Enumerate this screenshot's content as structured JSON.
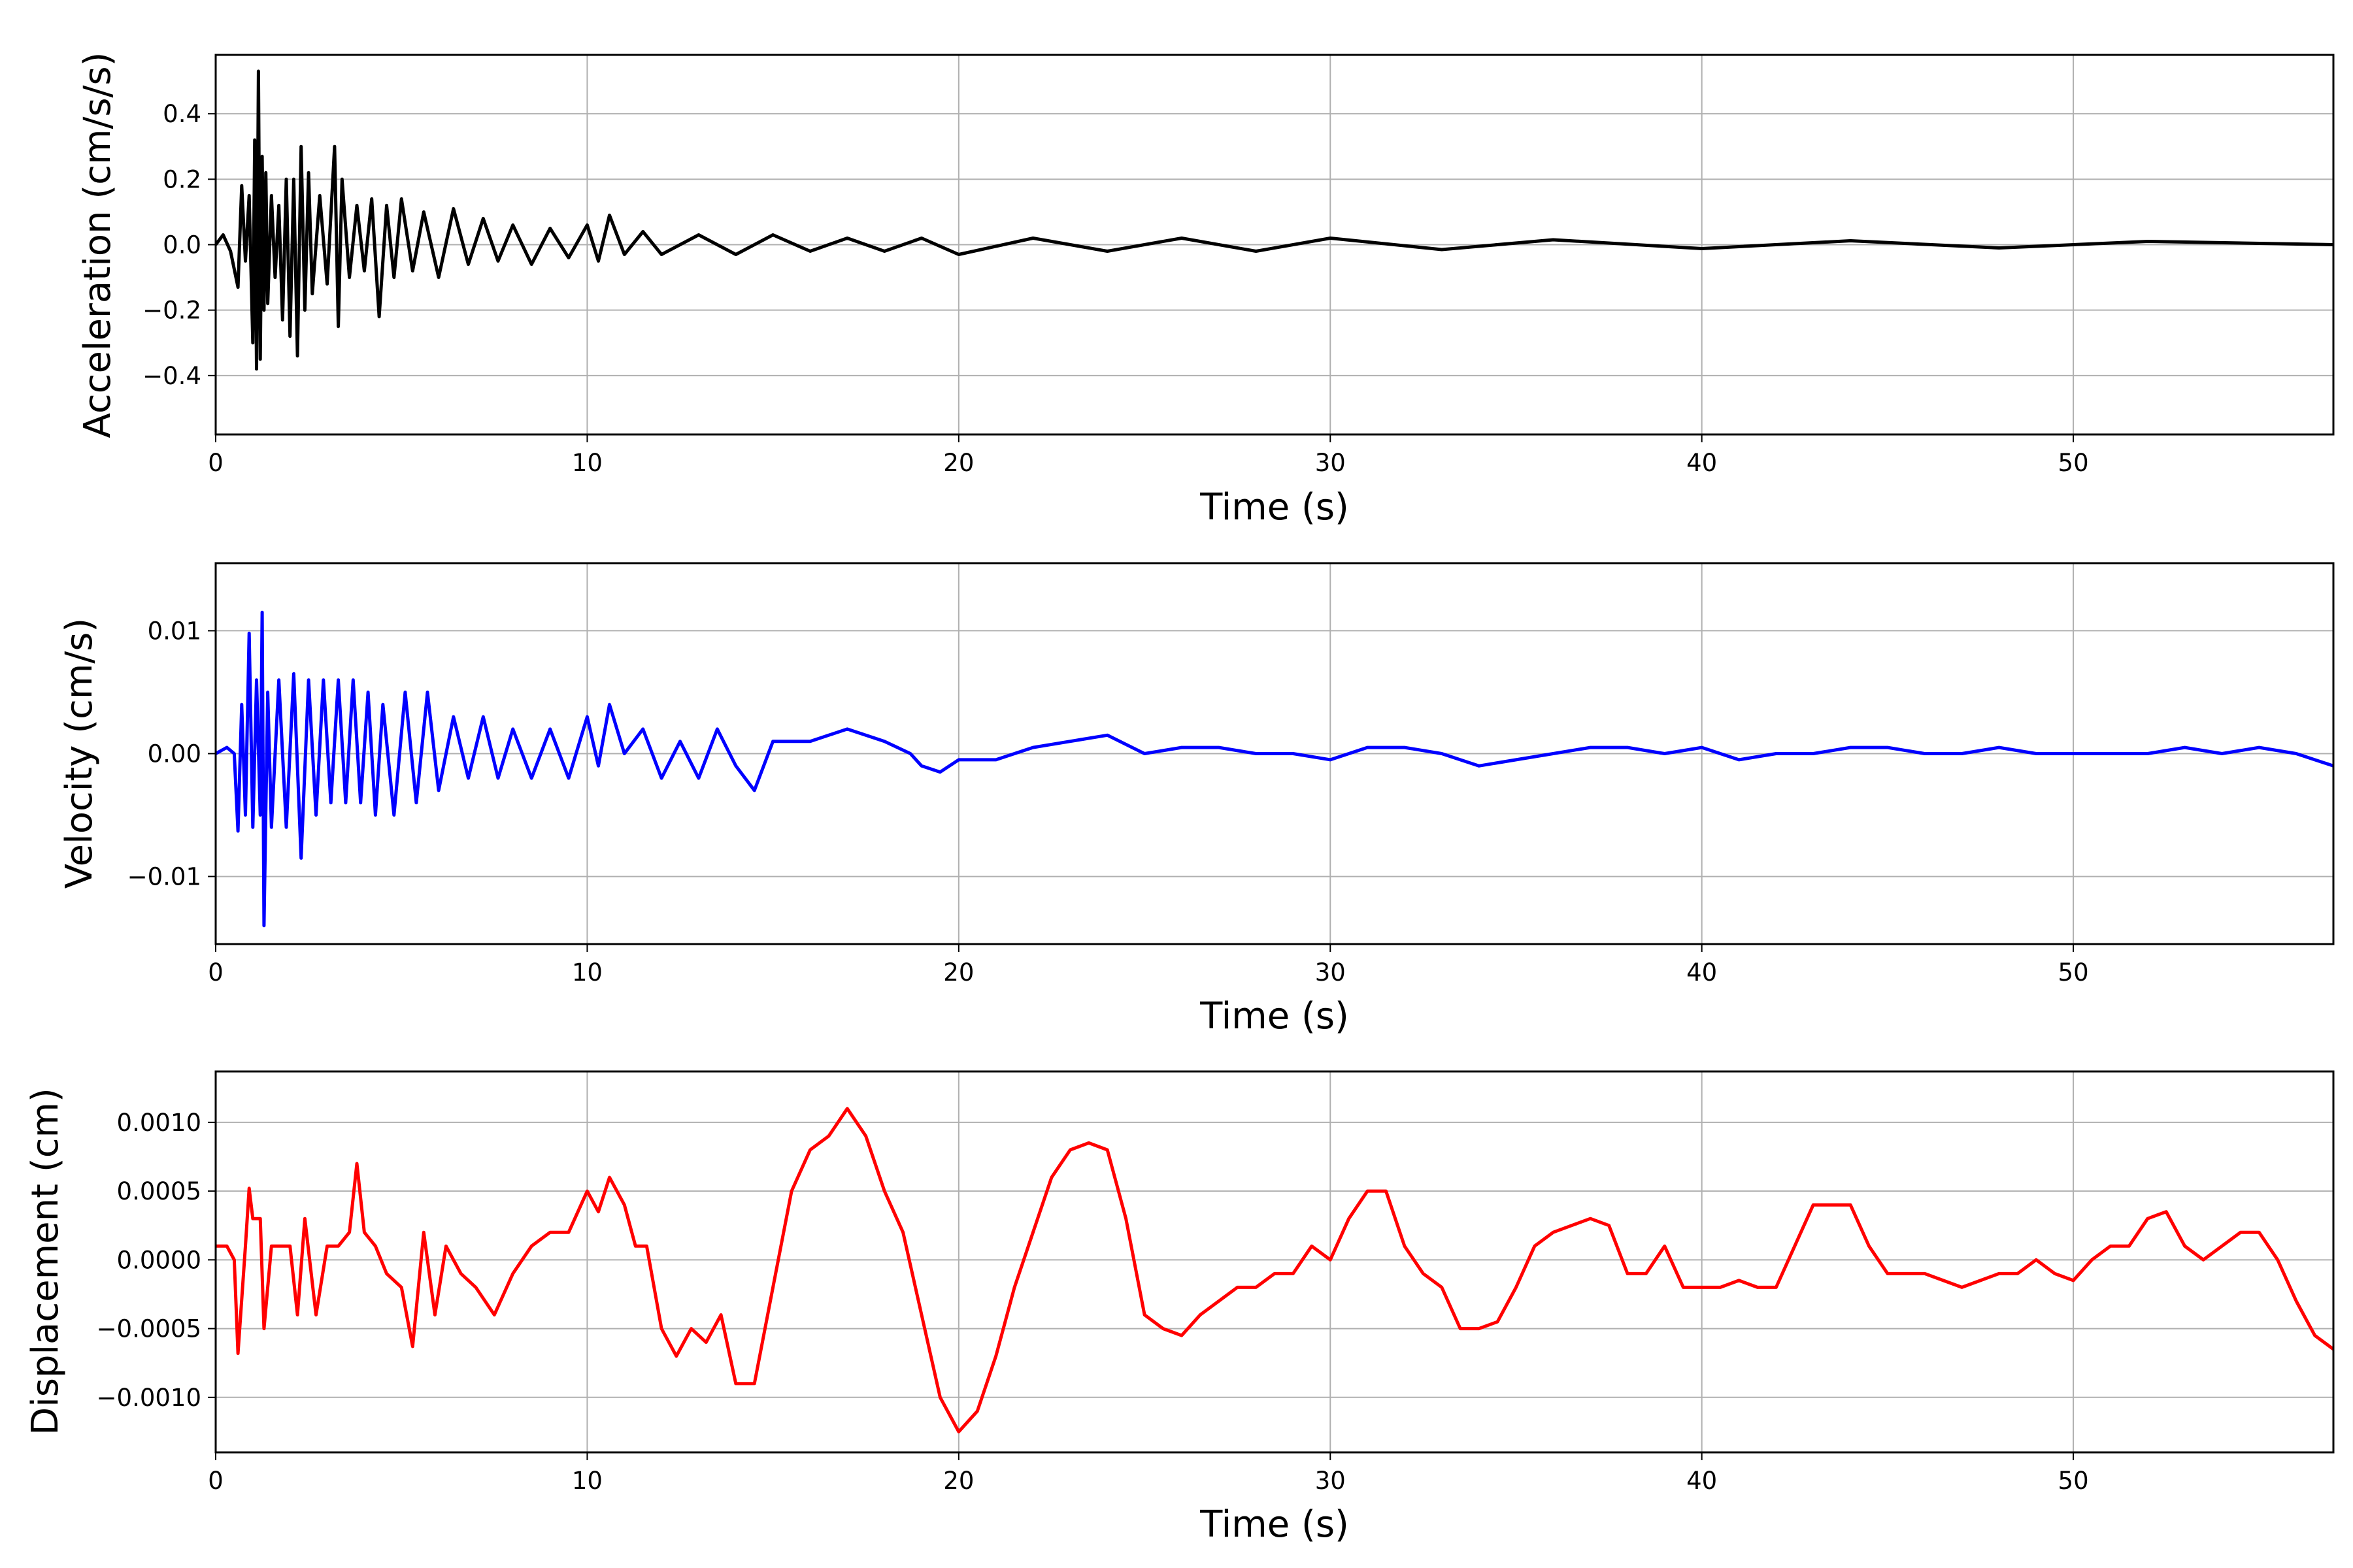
{
  "chart_data": [
    {
      "type": "line",
      "title": "",
      "xlabel": "Time (s)",
      "ylabel": "Acceleration (cm/s/s)",
      "xlim": [
        0,
        57
      ],
      "ylim": [
        -0.58,
        0.58
      ],
      "xticks": [
        0,
        10,
        20,
        30,
        40,
        50
      ],
      "xtick_labels": [
        "0",
        "10",
        "20",
        "30",
        "40",
        "50"
      ],
      "yticks": [
        0.4,
        0.2,
        0.0,
        -0.2,
        -0.4
      ],
      "ytick_labels": [
        "0.4",
        "0.2",
        "0.0",
        "−0.2",
        "−0.4"
      ],
      "grid": true,
      "legend": "none",
      "series": [
        {
          "color": "#000000",
          "x": [
            0,
            0.2,
            0.4,
            0.6,
            0.7,
            0.8,
            0.9,
            1.0,
            1.05,
            1.1,
            1.15,
            1.2,
            1.25,
            1.3,
            1.35,
            1.4,
            1.5,
            1.6,
            1.7,
            1.8,
            1.9,
            2.0,
            2.1,
            2.2,
            2.3,
            2.4,
            2.5,
            2.6,
            2.8,
            3.0,
            3.2,
            3.3,
            3.4,
            3.6,
            3.8,
            4.0,
            4.2,
            4.4,
            4.6,
            4.8,
            5.0,
            5.3,
            5.6,
            6.0,
            6.4,
            6.8,
            7.2,
            7.6,
            8.0,
            8.5,
            9.0,
            9.5,
            10.0,
            10.3,
            10.6,
            11.0,
            11.5,
            12.0,
            13.0,
            14.0,
            15.0,
            16.0,
            17.0,
            18.0,
            19.0,
            20.0,
            22.0,
            24.0,
            26.0,
            28.0,
            30.0,
            33.0,
            36.0,
            40.0,
            44.0,
            48.0,
            52.0,
            57.0
          ],
          "y": [
            0.0,
            0.03,
            -0.02,
            -0.13,
            0.18,
            -0.05,
            0.15,
            -0.3,
            0.32,
            -0.38,
            0.53,
            -0.35,
            0.27,
            -0.2,
            0.22,
            -0.18,
            0.15,
            -0.1,
            0.12,
            -0.23,
            0.2,
            -0.28,
            0.2,
            -0.34,
            0.3,
            -0.2,
            0.22,
            -0.15,
            0.15,
            -0.12,
            0.3,
            -0.25,
            0.2,
            -0.1,
            0.12,
            -0.08,
            0.14,
            -0.22,
            0.12,
            -0.1,
            0.14,
            -0.08,
            0.1,
            -0.1,
            0.11,
            -0.06,
            0.08,
            -0.05,
            0.06,
            -0.06,
            0.05,
            -0.04,
            0.06,
            -0.05,
            0.09,
            -0.03,
            0.04,
            -0.03,
            0.03,
            -0.03,
            0.03,
            -0.02,
            0.02,
            -0.02,
            0.02,
            -0.03,
            0.02,
            -0.02,
            0.02,
            -0.02,
            0.02,
            -0.015,
            0.015,
            -0.012,
            0.012,
            -0.01,
            0.01,
            0.0
          ]
        }
      ]
    },
    {
      "type": "line",
      "title": "",
      "xlabel": "Time (s)",
      "ylabel": "Velocity (cm/s)",
      "xlim": [
        0,
        57
      ],
      "ylim": [
        -0.0155,
        0.0155
      ],
      "xticks": [
        0,
        10,
        20,
        30,
        40,
        50
      ],
      "xtick_labels": [
        "0",
        "10",
        "20",
        "30",
        "40",
        "50"
      ],
      "yticks": [
        0.01,
        0.0,
        -0.01
      ],
      "ytick_labels": [
        "0.01",
        "0.00",
        "−0.01"
      ],
      "grid": true,
      "legend": "none",
      "series": [
        {
          "color": "#0000ff",
          "x": [
            0,
            0.3,
            0.5,
            0.6,
            0.7,
            0.8,
            0.9,
            1.0,
            1.1,
            1.2,
            1.25,
            1.3,
            1.4,
            1.5,
            1.7,
            1.9,
            2.1,
            2.3,
            2.5,
            2.7,
            2.9,
            3.1,
            3.3,
            3.5,
            3.7,
            3.9,
            4.1,
            4.3,
            4.5,
            4.8,
            5.1,
            5.4,
            5.7,
            6.0,
            6.4,
            6.8,
            7.2,
            7.6,
            8.0,
            8.5,
            9.0,
            9.5,
            10.0,
            10.3,
            10.6,
            11.0,
            11.5,
            12.0,
            12.5,
            13.0,
            13.5,
            14.0,
            14.5,
            15.0,
            16.0,
            17.0,
            18.0,
            18.7,
            19.0,
            19.5,
            20.0,
            21.0,
            22.0,
            23.0,
            24.0,
            25.0,
            26.0,
            27.0,
            28.0,
            29.0,
            30.0,
            31.0,
            32.0,
            33.0,
            34.0,
            35.0,
            36.0,
            37.0,
            38.0,
            39.0,
            40.0,
            41.0,
            42.0,
            43.0,
            44.0,
            45.0,
            46.0,
            47.0,
            48.0,
            49.0,
            50.0,
            51.0,
            52.0,
            53.0,
            54.0,
            55.0,
            56.0,
            57.0
          ],
          "y": [
            0.0,
            0.0005,
            0.0,
            -0.0063,
            0.004,
            -0.005,
            0.0098,
            -0.006,
            0.006,
            -0.005,
            0.0115,
            -0.014,
            0.005,
            -0.006,
            0.006,
            -0.006,
            0.0065,
            -0.0085,
            0.006,
            -0.005,
            0.006,
            -0.004,
            0.006,
            -0.004,
            0.006,
            -0.004,
            0.005,
            -0.005,
            0.004,
            -0.005,
            0.005,
            -0.004,
            0.005,
            -0.003,
            0.003,
            -0.002,
            0.003,
            -0.002,
            0.002,
            -0.002,
            0.002,
            -0.002,
            0.003,
            -0.001,
            0.004,
            0.0,
            0.002,
            -0.002,
            0.001,
            -0.002,
            0.002,
            -0.001,
            -0.003,
            0.001,
            0.001,
            0.002,
            0.001,
            0.0,
            -0.001,
            -0.0015,
            -0.0005,
            -0.0005,
            0.0005,
            0.001,
            0.0015,
            0.0,
            0.0005,
            0.0005,
            0.0,
            0.0,
            -0.0005,
            0.0005,
            0.0005,
            0.0,
            -0.001,
            -0.0005,
            0.0,
            0.0005,
            0.0005,
            0.0,
            0.0005,
            -0.0005,
            0.0,
            0.0,
            0.0005,
            0.0005,
            0.0,
            0.0,
            0.0005,
            0.0,
            0.0,
            0.0,
            0.0,
            0.0005,
            0.0,
            0.0005,
            0.0,
            -0.001
          ]
        }
      ]
    },
    {
      "type": "line",
      "title": "",
      "xlabel": "Time (s)",
      "ylabel": "Displacement (cm)",
      "xlim": [
        0,
        57
      ],
      "ylim": [
        -0.0014,
        0.00137
      ],
      "xticks": [
        0,
        10,
        20,
        30,
        40,
        50
      ],
      "xtick_labels": [
        "0",
        "10",
        "20",
        "30",
        "40",
        "50"
      ],
      "yticks": [
        0.001,
        0.0005,
        0.0,
        -0.0005,
        -0.001
      ],
      "ytick_labels": [
        "0.0010",
        "0.0005",
        "0.0000",
        "−0.0005",
        "−0.0010"
      ],
      "grid": true,
      "legend": "none",
      "series": [
        {
          "color": "#ff0000",
          "x": [
            0,
            0.3,
            0.5,
            0.6,
            0.8,
            0.9,
            1.0,
            1.2,
            1.3,
            1.5,
            1.7,
            2.0,
            2.2,
            2.4,
            2.7,
            3.0,
            3.3,
            3.6,
            3.8,
            4.0,
            4.3,
            4.6,
            5.0,
            5.3,
            5.6,
            5.9,
            6.2,
            6.6,
            7.0,
            7.5,
            8.0,
            8.5,
            9.0,
            9.5,
            10.0,
            10.3,
            10.6,
            11.0,
            11.3,
            11.6,
            12.0,
            12.4,
            12.8,
            13.2,
            13.6,
            14.0,
            14.5,
            15.0,
            15.5,
            16.0,
            16.5,
            17.0,
            17.5,
            18.0,
            18.5,
            19.0,
            19.5,
            20.0,
            20.5,
            21.0,
            21.5,
            22.0,
            22.5,
            23.0,
            23.5,
            24.0,
            24.5,
            25.0,
            25.5,
            26.0,
            26.5,
            27.0,
            27.5,
            28.0,
            28.5,
            29.0,
            29.5,
            30.0,
            30.5,
            31.0,
            31.5,
            32.0,
            32.5,
            33.0,
            33.5,
            34.0,
            34.5,
            35.0,
            35.5,
            36.0,
            36.5,
            37.0,
            37.5,
            38.0,
            38.5,
            39.0,
            39.5,
            40.0,
            40.5,
            41.0,
            41.5,
            42.0,
            42.5,
            43.0,
            43.5,
            44.0,
            44.5,
            45.0,
            45.5,
            46.0,
            46.5,
            47.0,
            47.5,
            48.0,
            48.5,
            49.0,
            49.5,
            50.0,
            50.5,
            51.0,
            51.5,
            52.0,
            52.5,
            53.0,
            53.5,
            54.0,
            54.5,
            55.0,
            55.5,
            56.0,
            56.5,
            57.0
          ],
          "y": [
            0.0001,
            0.0001,
            0.0,
            -0.00068,
            0.0001,
            0.00052,
            0.0003,
            0.0003,
            -0.0005,
            0.0001,
            0.0001,
            0.0001,
            -0.0004,
            0.0003,
            -0.0004,
            0.0001,
            0.0001,
            0.0002,
            0.0007,
            0.0002,
            0.0001,
            -0.0001,
            -0.0002,
            -0.00063,
            0.0002,
            -0.0004,
            0.0001,
            -0.0001,
            -0.0002,
            -0.0004,
            -0.0001,
            0.0001,
            0.0002,
            0.0002,
            0.0005,
            0.00035,
            0.0006,
            0.0004,
            0.0001,
            0.0001,
            -0.0005,
            -0.0007,
            -0.0005,
            -0.0006,
            -0.0004,
            -0.0009,
            -0.0009,
            -0.0002,
            0.0005,
            0.0008,
            0.0009,
            0.0011,
            0.0009,
            0.0005,
            0.0002,
            -0.0004,
            -0.001,
            -0.00125,
            -0.0011,
            -0.0007,
            -0.0002,
            0.0002,
            0.0006,
            0.0008,
            0.00085,
            0.0008,
            0.0003,
            -0.0004,
            -0.0005,
            -0.00055,
            -0.0004,
            -0.0003,
            -0.0002,
            -0.0002,
            -0.0001,
            -0.0001,
            0.0001,
            0.0,
            0.0003,
            0.0005,
            0.0005,
            0.0001,
            -0.0001,
            -0.0002,
            -0.0005,
            -0.0005,
            -0.00045,
            -0.0002,
            0.0001,
            0.0002,
            0.00025,
            0.0003,
            0.00025,
            -0.0001,
            -0.0001,
            0.0001,
            -0.0002,
            -0.0002,
            -0.0002,
            -0.00015,
            -0.0002,
            -0.0002,
            0.0001,
            0.0004,
            0.0004,
            0.0004,
            0.0001,
            -0.0001,
            -0.0001,
            -0.0001,
            -0.00015,
            -0.0002,
            -0.00015,
            -0.0001,
            -0.0001,
            0.0,
            -0.0001,
            -0.00015,
            0.0,
            0.0001,
            0.0001,
            0.0003,
            0.00035,
            0.0001,
            0.0,
            0.0001,
            0.0002,
            0.0002,
            0.0,
            -0.0003,
            -0.00055,
            -0.00065
          ]
        }
      ]
    }
  ]
}
